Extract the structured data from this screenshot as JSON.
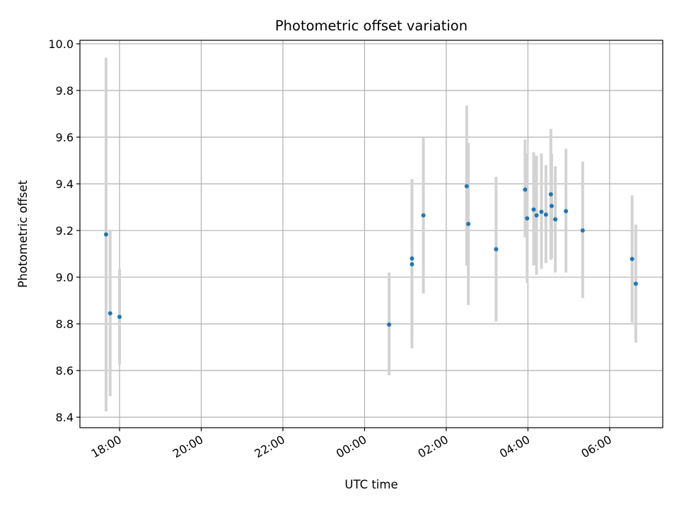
{
  "chart_data": {
    "type": "scatter",
    "title": "Photometric offset variation",
    "xlabel": "UTC time",
    "ylabel": "Photometric offset",
    "x_unit": "hours",
    "x_ticks": [
      {
        "value": 18,
        "label": "18:00"
      },
      {
        "value": 20,
        "label": "20:00"
      },
      {
        "value": 22,
        "label": "22:00"
      },
      {
        "value": 24,
        "label": "00:00"
      },
      {
        "value": 26,
        "label": "02:00"
      },
      {
        "value": 28,
        "label": "04:00"
      },
      {
        "value": 30,
        "label": "06:00"
      }
    ],
    "y_ticks": [
      8.4,
      8.6,
      8.8,
      9.0,
      9.2,
      9.4,
      9.6,
      9.8,
      10.0
    ],
    "xlim": [
      17.03,
      31.3
    ],
    "ylim": [
      8.355,
      10.015
    ],
    "grid": true,
    "point_color": "#1f77b4",
    "errorbar_color": "#d3d3d3",
    "points": [
      {
        "x": 17.67,
        "y": 9.183,
        "lo": 8.425,
        "hi": 9.94
      },
      {
        "x": 17.77,
        "y": 8.845,
        "lo": 8.49,
        "hi": 9.2
      },
      {
        "x": 18.0,
        "y": 8.83,
        "lo": 8.625,
        "hi": 9.035
      },
      {
        "x": 24.6,
        "y": 8.797,
        "lo": 8.58,
        "hi": 9.02
      },
      {
        "x": 25.16,
        "y": 9.055,
        "lo": 8.695,
        "hi": 9.42
      },
      {
        "x": 25.16,
        "y": 9.08,
        "lo": 8.74,
        "hi": 9.42
      },
      {
        "x": 25.44,
        "y": 9.265,
        "lo": 8.93,
        "hi": 9.6
      },
      {
        "x": 26.5,
        "y": 9.39,
        "lo": 9.05,
        "hi": 9.735
      },
      {
        "x": 26.54,
        "y": 9.228,
        "lo": 8.88,
        "hi": 9.575
      },
      {
        "x": 27.22,
        "y": 9.12,
        "lo": 8.81,
        "hi": 9.43
      },
      {
        "x": 27.93,
        "y": 9.375,
        "lo": 9.17,
        "hi": 9.59
      },
      {
        "x": 27.98,
        "y": 9.252,
        "lo": 8.975,
        "hi": 9.53
      },
      {
        "x": 28.14,
        "y": 9.29,
        "lo": 9.05,
        "hi": 9.535
      },
      {
        "x": 28.21,
        "y": 9.265,
        "lo": 9.01,
        "hi": 9.52
      },
      {
        "x": 28.33,
        "y": 9.28,
        "lo": 9.035,
        "hi": 9.53
      },
      {
        "x": 28.44,
        "y": 9.268,
        "lo": 9.06,
        "hi": 9.48
      },
      {
        "x": 28.56,
        "y": 9.355,
        "lo": 9.075,
        "hi": 9.635
      },
      {
        "x": 28.58,
        "y": 9.305,
        "lo": 9.08,
        "hi": 9.53
      },
      {
        "x": 28.67,
        "y": 9.248,
        "lo": 9.02,
        "hi": 9.475
      },
      {
        "x": 28.93,
        "y": 9.283,
        "lo": 9.02,
        "hi": 9.55
      },
      {
        "x": 29.34,
        "y": 9.2,
        "lo": 8.91,
        "hi": 9.495
      },
      {
        "x": 30.55,
        "y": 9.078,
        "lo": 8.805,
        "hi": 9.35
      },
      {
        "x": 30.64,
        "y": 8.972,
        "lo": 8.72,
        "hi": 9.225
      }
    ]
  }
}
